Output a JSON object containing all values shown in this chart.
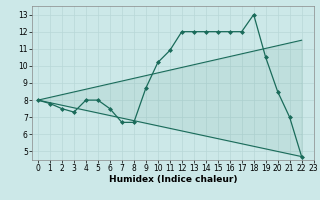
{
  "title": "",
  "xlabel": "Humidex (Indice chaleur)",
  "bg_color": "#cce8e8",
  "line_color": "#1a6b5a",
  "xlim": [
    -0.5,
    23
  ],
  "ylim": [
    4.5,
    13.5
  ],
  "xticks": [
    0,
    1,
    2,
    3,
    4,
    5,
    6,
    7,
    8,
    9,
    10,
    11,
    12,
    13,
    14,
    15,
    16,
    17,
    18,
    19,
    20,
    21,
    22,
    23
  ],
  "yticks": [
    5,
    6,
    7,
    8,
    9,
    10,
    11,
    12,
    13
  ],
  "line1_x": [
    0,
    1,
    2,
    3,
    4,
    5,
    6,
    7,
    8,
    9,
    10,
    11,
    12,
    13,
    14,
    15,
    16,
    17,
    18,
    19,
    20,
    21,
    22
  ],
  "line1_y": [
    8.0,
    7.8,
    7.5,
    7.3,
    8.0,
    8.0,
    7.5,
    6.7,
    6.7,
    8.7,
    10.2,
    10.9,
    12.0,
    12.0,
    12.0,
    12.0,
    12.0,
    12.0,
    13.0,
    10.5,
    8.5,
    7.0,
    4.7
  ],
  "line2_x": [
    0,
    22
  ],
  "line2_y": [
    8.0,
    11.5
  ],
  "line3_x": [
    0,
    22
  ],
  "line3_y": [
    8.0,
    4.7
  ],
  "xlabel_fontsize": 6.5,
  "tick_fontsize": 5.5,
  "grid_color": "#b8d8d8"
}
